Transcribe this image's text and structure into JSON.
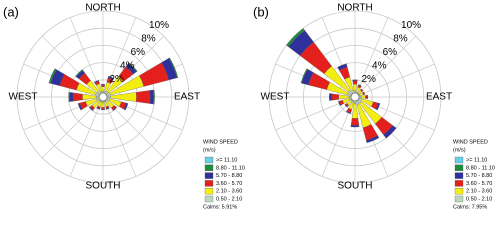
{
  "chart_data": [
    {
      "type": "windrose",
      "panel_label": "(a)",
      "directions": [
        "NORTH",
        "EAST",
        "SOUTH",
        "WEST"
      ],
      "rlim": [
        0,
        10
      ],
      "rticks": [
        {
          "value": 2,
          "label": "2%"
        },
        {
          "value": 4,
          "label": "4%"
        },
        {
          "value": 6,
          "label": "6%"
        },
        {
          "value": 8,
          "label": "8%"
        },
        {
          "value": 10,
          "label": "10%"
        }
      ],
      "legend_title": [
        "WIND SPEED",
        "(m/s)"
      ],
      "calms_label": "Calms: 5.91%",
      "series": [
        {
          "name": ">= 11.10",
          "color": "#66cfe6",
          "values": [
            0,
            0,
            0,
            0,
            0,
            0,
            0,
            0,
            0,
            0,
            0,
            0,
            0,
            0,
            0,
            0
          ]
        },
        {
          "name": "8.80 - 11.10",
          "color": "#1e8c3c",
          "values": [
            0,
            0,
            0.1,
            0.1,
            0.1,
            0,
            0,
            0,
            0,
            0,
            0,
            0,
            0.1,
            0.2,
            0.1,
            0
          ]
        },
        {
          "name": "5.70 - 8.80",
          "color": "#30309c",
          "values": [
            0.1,
            0.2,
            0.5,
            1.0,
            0.4,
            0.2,
            0.1,
            0.1,
            0.1,
            0.1,
            0.1,
            0.2,
            0.4,
            1.1,
            0.4,
            0.1
          ]
        },
        {
          "name": "3.60 - 5.70",
          "color": "#e3201c",
          "values": [
            0.2,
            0.5,
            1.4,
            3.0,
            1.6,
            0.6,
            0.3,
            0.2,
            0.2,
            0.2,
            0.3,
            0.7,
            1.1,
            2.0,
            1.1,
            0.3
          ]
        },
        {
          "name": "2.10 - 3.60",
          "color": "#f4ee10",
          "values": [
            0.6,
            1.1,
            2.2,
            4.0,
            3.0,
            1.4,
            0.9,
            0.6,
            0.6,
            0.6,
            0.9,
            1.3,
            1.6,
            2.3,
            1.6,
            0.9
          ]
        },
        {
          "name": "0.50 - 2.10",
          "color": "#bcd8bc",
          "values": [
            0.6,
            0.7,
            0.8,
            0.9,
            0.9,
            0.8,
            0.7,
            0.6,
            0.6,
            0.6,
            0.7,
            0.8,
            0.8,
            0.9,
            0.8,
            0.7
          ]
        }
      ]
    },
    {
      "type": "windrose",
      "panel_label": "(b)",
      "directions": [
        "NORTH",
        "EAST",
        "SOUTH",
        "WEST"
      ],
      "rlim": [
        0,
        10
      ],
      "rticks": [
        {
          "value": 2,
          "label": "2%"
        },
        {
          "value": 4,
          "label": "4%"
        },
        {
          "value": 6,
          "label": "6%"
        },
        {
          "value": 8,
          "label": "8%"
        },
        {
          "value": 10,
          "label": "10%"
        }
      ],
      "legend_title": [
        "WIND SPEED",
        "(m/s)"
      ],
      "calms_label": "Calms: 7.95%",
      "series": [
        {
          "name": ">= 11.10",
          "color": "#66cfe6",
          "values": [
            0,
            0,
            0,
            0,
            0,
            0,
            0,
            0,
            0,
            0,
            0,
            0,
            0,
            0,
            0,
            0
          ]
        },
        {
          "name": "8.80 - 11.10",
          "color": "#1e8c3c",
          "values": [
            0,
            0,
            0,
            0,
            0,
            0,
            0,
            0,
            0,
            0,
            0,
            0,
            0,
            0.1,
            0.3,
            0
          ]
        },
        {
          "name": "5.70 - 8.80",
          "color": "#30309c",
          "values": [
            0.1,
            0.1,
            0,
            0,
            0.1,
            0.2,
            0.5,
            0.3,
            0.2,
            0.1,
            0.1,
            0.1,
            0.3,
            0.8,
            1.7,
            0.4
          ]
        },
        {
          "name": "3.60 - 5.70",
          "color": "#e3201c",
          "values": [
            0.4,
            0.2,
            0.2,
            0.2,
            0.2,
            0.6,
            1.6,
            1.5,
            0.8,
            0.4,
            0.2,
            0.4,
            0.8,
            2.2,
            3.5,
            1.2
          ]
        },
        {
          "name": "2.10 - 3.60",
          "color": "#f4ee10",
          "values": [
            0.8,
            0.6,
            0.4,
            0.4,
            0.5,
            1.4,
            3.0,
            2.8,
            1.7,
            0.8,
            0.6,
            0.8,
            1.2,
            2.5,
            3.5,
            1.6
          ]
        },
        {
          "name": "0.50 - 2.10",
          "color": "#bcd8bc",
          "values": [
            0.7,
            0.6,
            0.6,
            0.6,
            0.7,
            0.8,
            0.9,
            0.9,
            0.8,
            0.7,
            0.6,
            0.7,
            0.7,
            0.9,
            1.0,
            0.8
          ]
        }
      ]
    }
  ]
}
